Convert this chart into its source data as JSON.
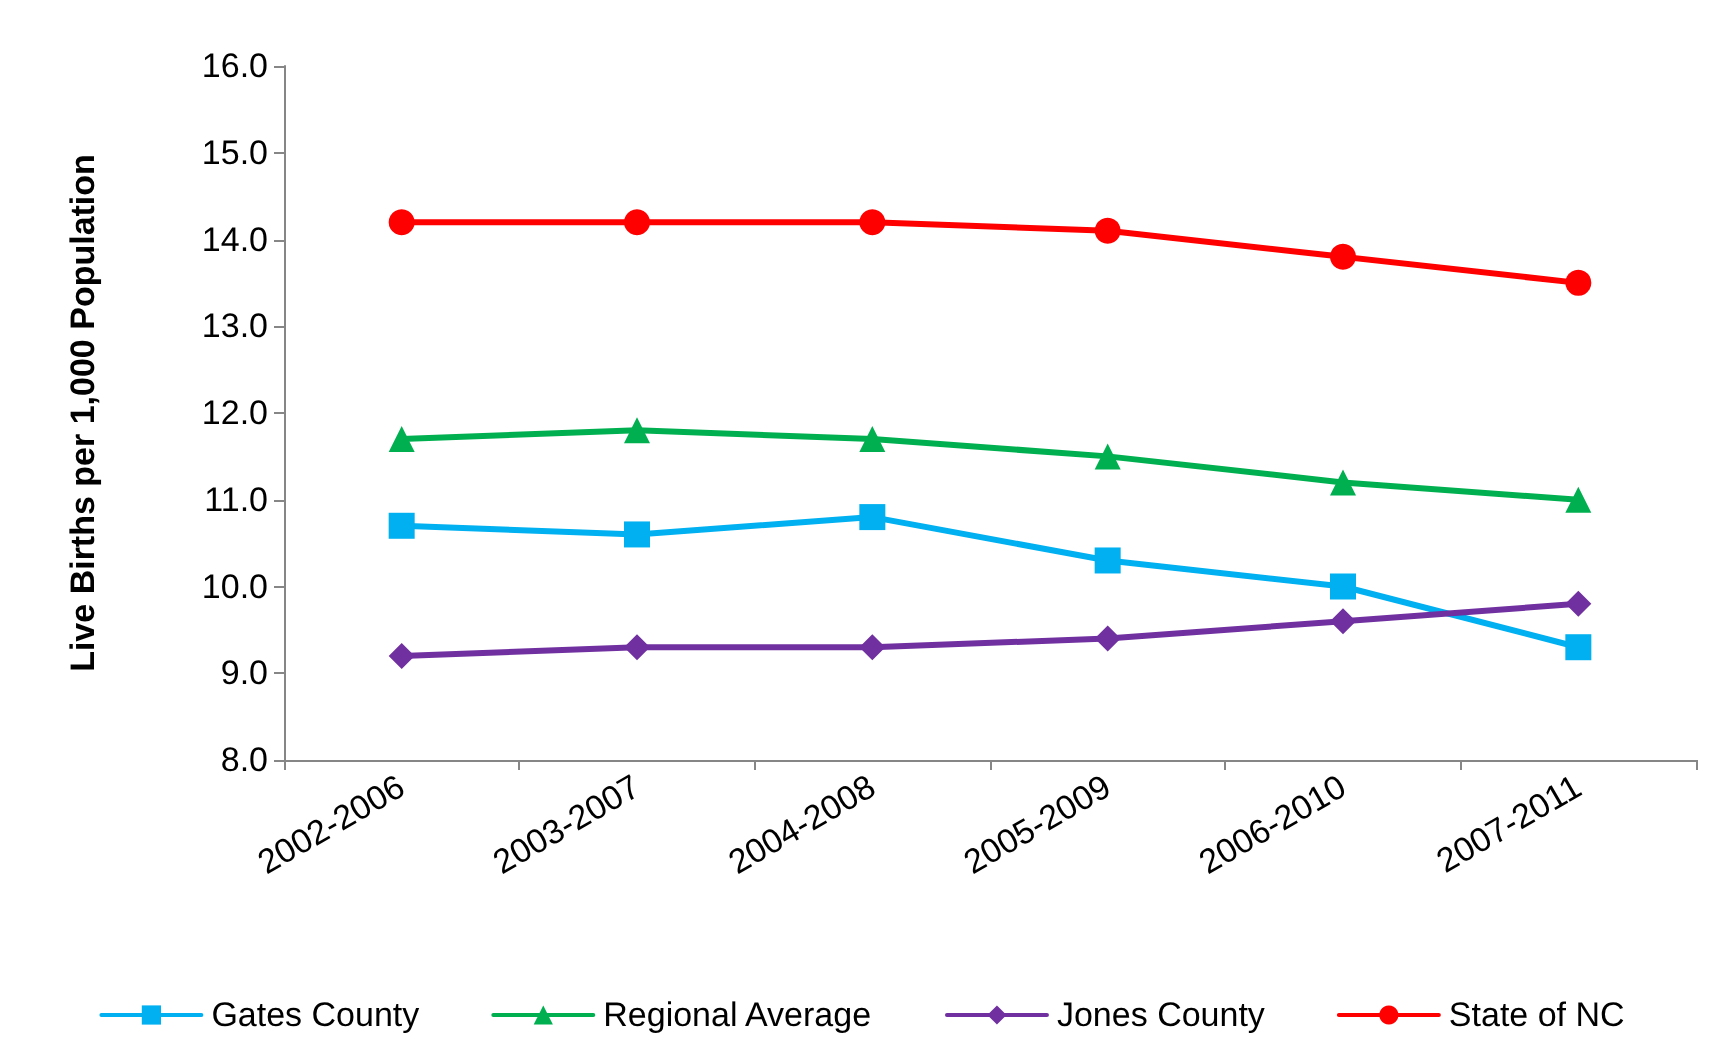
{
  "chart_data": {
    "type": "line",
    "ylabel": "Live Births per 1,000 Population",
    "categories": [
      "2002-2006",
      "2003-2007",
      "2004-2008",
      "2005-2009",
      "2006-2010",
      "2007-2011"
    ],
    "series": [
      {
        "name": "Gates County",
        "color": "#00b0f0",
        "marker": "square",
        "values": [
          10.7,
          10.6,
          10.8,
          10.3,
          10.0,
          9.3
        ]
      },
      {
        "name": "Regional Average",
        "color": "#00b050",
        "marker": "triangle",
        "values": [
          11.7,
          11.8,
          11.7,
          11.5,
          11.2,
          11.0
        ]
      },
      {
        "name": "Jones County",
        "color": "#7030a0",
        "marker": "diamond",
        "values": [
          9.2,
          9.3,
          9.3,
          9.4,
          9.6,
          9.8
        ]
      },
      {
        "name": "State of NC",
        "color": "#ff0000",
        "marker": "circle",
        "values": [
          14.2,
          14.2,
          14.2,
          14.1,
          13.8,
          13.5
        ]
      }
    ],
    "ylim": [
      8,
      16
    ],
    "yticks": [
      {
        "value": 8,
        "label": "8.0"
      },
      {
        "value": 9,
        "label": "9.0"
      },
      {
        "value": 10,
        "label": "10.0"
      },
      {
        "value": 11,
        "label": "11.0"
      },
      {
        "value": 12,
        "label": "12.0"
      },
      {
        "value": 13,
        "label": "13.0"
      },
      {
        "value": 14,
        "label": "14.0"
      },
      {
        "value": 15,
        "label": "15.0"
      },
      {
        "value": 16,
        "label": "16.0"
      }
    ],
    "grid": false,
    "legend": "bottom",
    "line_style": "solid"
  }
}
